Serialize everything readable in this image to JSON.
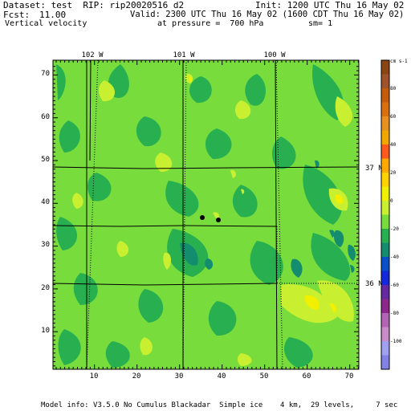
{
  "header": {
    "dataset_line": "Dataset: test  RIP: rip20020516 d2",
    "init_line": "Init: 1200 UTC Thu 16 May 02",
    "fcst_label": "Fcst:",
    "fcst_value": "11.00",
    "valid_line": "Valid: 2300 UTC Thu 16 May 02 (1600 CDT Thu 16 May 02)",
    "field_name": "Vertical velocity",
    "pressure_line": "at pressure =  700 hPa",
    "sm_line": "sm= 1"
  },
  "map": {
    "x_ticks": [
      "10",
      "20",
      "30",
      "40",
      "50",
      "60",
      "70"
    ],
    "y_ticks": [
      "10",
      "20",
      "30",
      "40",
      "50",
      "60",
      "70"
    ],
    "longitude_labels": [
      "102 W",
      "101 W",
      "100 W"
    ],
    "latitude_labels": [
      "37 N",
      "36 N"
    ],
    "base_color": "#78dc3c"
  },
  "colorbar": {
    "unit": "cm s-1",
    "levels": [
      {
        "value": "",
        "color": "#8b4513"
      },
      {
        "value": "",
        "color": "#a0522d"
      },
      {
        "value": "80",
        "color": "#c45c0a"
      },
      {
        "value": "",
        "color": "#d87010"
      },
      {
        "value": "60",
        "color": "#e89020"
      },
      {
        "value": "",
        "color": "#f0a800"
      },
      {
        "value": "40",
        "color": "#ff5a1e"
      },
      {
        "value": "",
        "color": "#ffa800"
      },
      {
        "value": "20",
        "color": "#ffd200"
      },
      {
        "value": "",
        "color": "#f0f000"
      },
      {
        "value": "0",
        "color": "#c8f030"
      },
      {
        "value": "",
        "color": "#78dc3c"
      },
      {
        "value": "-20",
        "color": "#28b050"
      },
      {
        "value": "",
        "color": "#148c6e"
      },
      {
        "value": "-40",
        "color": "#0a50c8"
      },
      {
        "value": "",
        "color": "#1428dc"
      },
      {
        "value": "-60",
        "color": "#6428a0"
      },
      {
        "value": "",
        "color": "#8c288c"
      },
      {
        "value": "-80",
        "color": "#b464b4"
      },
      {
        "value": "",
        "color": "#c88cc8"
      },
      {
        "value": "-100",
        "color": "#a0a0f0"
      },
      {
        "value": "",
        "color": "#8282e6"
      }
    ]
  },
  "footer": {
    "model_info": "Model info: V3.5.0 No Cumulus Blackadar  Simple ice    4 km,  29 levels,     7 sec"
  }
}
